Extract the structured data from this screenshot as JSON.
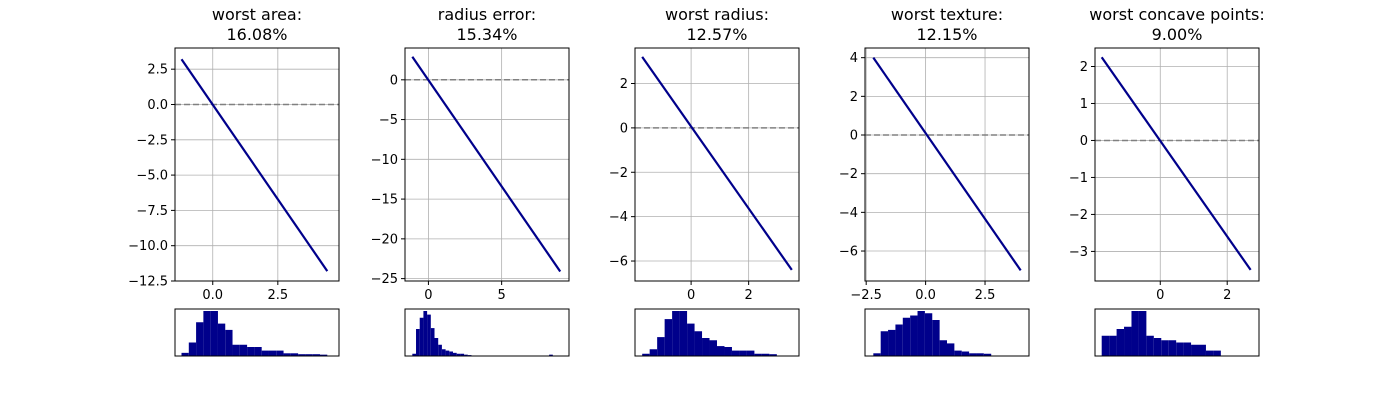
{
  "chart_data": [
    {
      "type": "line",
      "title": "worst area:\n16.08%",
      "xlim": [
        -1.45,
        4.85
      ],
      "ylim": [
        -12.5,
        4.0
      ],
      "xticks": [
        0.0,
        2.5
      ],
      "xtick_labels": [
        "0.0",
        "2.5"
      ],
      "yticks": [
        2.5,
        0.0,
        -2.5,
        -5.0,
        -7.5,
        -10.0,
        -12.5
      ],
      "ytick_labels": [
        "2.5",
        "0.0",
        "−2.5",
        "−5.0",
        "−7.5",
        "−10.0",
        "−12.5"
      ],
      "grid": true,
      "reference_line_y": 0,
      "x": [
        -1.2,
        4.4
      ],
      "y": [
        3.2,
        -11.8
      ],
      "histogram": {
        "x_range": [
          -1.2,
          4.4
        ],
        "bins": 20,
        "heights": [
          0.07,
          0.3,
          0.75,
          1.0,
          1.0,
          0.72,
          0.58,
          0.25,
          0.25,
          0.2,
          0.2,
          0.12,
          0.12,
          0.12,
          0.06,
          0.06,
          0.04,
          0.04,
          0.04,
          0.03
        ]
      }
    },
    {
      "type": "line",
      "title": "radius error:\n15.34%",
      "xlim": [
        -1.6,
        9.6
      ],
      "ylim": [
        -25.3,
        4.0
      ],
      "xticks": [
        0,
        5
      ],
      "xtick_labels": [
        "0",
        "5"
      ],
      "yticks": [
        0,
        -5,
        -10,
        -15,
        -20,
        -25
      ],
      "ytick_labels": [
        "0",
        "−5",
        "−10",
        "−15",
        "−20",
        "−25"
      ],
      "grid": true,
      "reference_line_y": 0,
      "x": [
        -1.1,
        9.0
      ],
      "y": [
        2.9,
        -24.1
      ],
      "histogram": {
        "x_range": [
          -1.1,
          9.0
        ],
        "bins": 40,
        "heights": [
          0.05,
          0.6,
          0.85,
          1.0,
          0.92,
          0.62,
          0.4,
          0.25,
          0.15,
          0.12,
          0.1,
          0.07,
          0.05,
          0.05,
          0.03,
          0.02,
          0.0,
          0.0,
          0.0,
          0.0,
          0.0,
          0.0,
          0.0,
          0.0,
          0.0,
          0.0,
          0.0,
          0.0,
          0.0,
          0.0,
          0.0,
          0.0,
          0.0,
          0.0,
          0.0,
          0.0,
          0.0,
          0.03,
          0.0,
          0.0
        ]
      }
    },
    {
      "type": "line",
      "title": "worst radius:\n12.57%",
      "xlim": [
        -1.95,
        3.75
      ],
      "ylim": [
        -6.9,
        3.6
      ],
      "xticks": [
        0,
        2
      ],
      "xtick_labels": [
        "0",
        "2"
      ],
      "yticks": [
        2,
        0,
        -2,
        -4,
        -6
      ],
      "ytick_labels": [
        "2",
        "0",
        "−2",
        "−4",
        "−6"
      ],
      "grid": true,
      "reference_line_y": 0,
      "x": [
        -1.7,
        3.5
      ],
      "y": [
        3.2,
        -6.4
      ],
      "histogram": {
        "x_range": [
          -1.7,
          3.5
        ],
        "bins": 20,
        "heights": [
          0.05,
          0.15,
          0.42,
          0.82,
          1.0,
          1.0,
          0.72,
          0.55,
          0.4,
          0.35,
          0.22,
          0.2,
          0.12,
          0.12,
          0.12,
          0.05,
          0.05,
          0.04,
          0.0,
          0.0
        ]
      }
    },
    {
      "type": "line",
      "title": "worst texture:\n12.15%",
      "xlim": [
        -2.55,
        4.35
      ],
      "ylim": [
        -7.55,
        4.5
      ],
      "xticks": [
        -2.5,
        0.0,
        2.5
      ],
      "xtick_labels": [
        "−2.5",
        "0.0",
        "2.5"
      ],
      "yticks": [
        4,
        2,
        0,
        -2,
        -4,
        -6
      ],
      "ytick_labels": [
        "4",
        "2",
        "0",
        "−2",
        "−4",
        "−6"
      ],
      "grid": true,
      "reference_line_y": 0,
      "x": [
        -2.2,
        4.0
      ],
      "y": [
        4.0,
        -7.0
      ],
      "histogram": {
        "x_range": [
          -2.2,
          4.0
        ],
        "bins": 20,
        "heights": [
          0.06,
          0.55,
          0.58,
          0.7,
          0.85,
          0.9,
          1.0,
          0.95,
          0.8,
          0.35,
          0.28,
          0.12,
          0.1,
          0.06,
          0.06,
          0.05,
          0.0,
          0.0,
          0.0,
          0.0
        ]
      }
    },
    {
      "type": "line",
      "title": "worst concave points:\n9.00%",
      "xlim": [
        -1.95,
        2.95
      ],
      "ylim": [
        -3.8,
        2.5
      ],
      "xticks": [
        0,
        2
      ],
      "xtick_labels": [
        "0",
        "2"
      ],
      "yticks": [
        2,
        1,
        0,
        -1,
        -2,
        -3
      ],
      "ytick_labels": [
        "2",
        "1",
        "0",
        "−1",
        "−2",
        "−3"
      ],
      "grid": true,
      "reference_line_y": 0,
      "x": [
        -1.75,
        2.7
      ],
      "y": [
        2.25,
        -3.5
      ],
      "histogram": {
        "x_range": [
          -1.75,
          2.7
        ],
        "bins": 20,
        "heights": [
          0.45,
          0.45,
          0.6,
          0.65,
          1.0,
          1.0,
          0.45,
          0.4,
          0.35,
          0.35,
          0.3,
          0.3,
          0.25,
          0.25,
          0.12,
          0.12,
          0.0,
          0.0,
          0.0,
          0.0
        ]
      }
    }
  ]
}
